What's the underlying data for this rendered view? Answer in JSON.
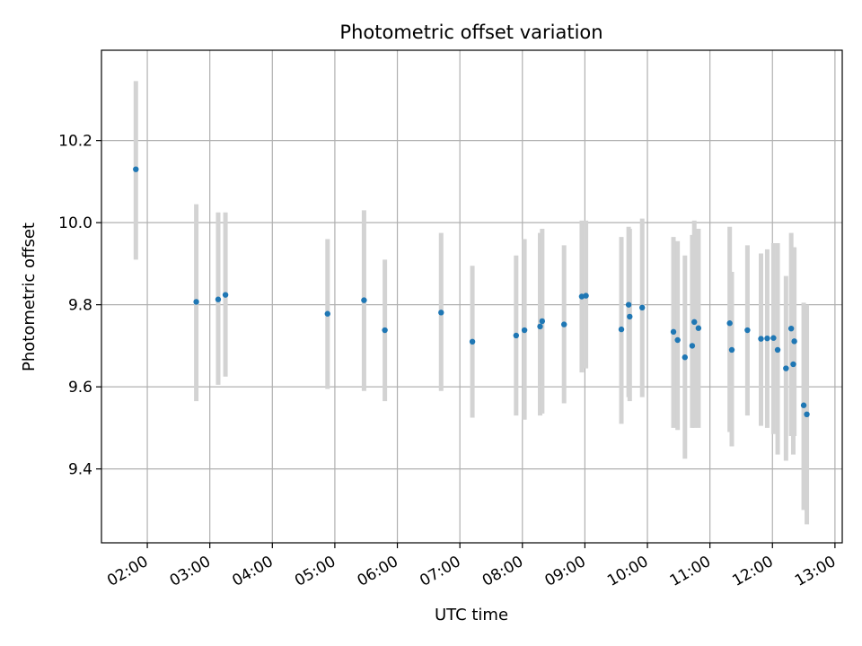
{
  "chart_data": {
    "type": "scatter",
    "title": "Photometric offset variation",
    "xlabel": "UTC time",
    "ylabel": "Photometric offset",
    "xlim": [
      "01:16",
      "13:07"
    ],
    "ylim": [
      9.22,
      10.42
    ],
    "grid": true,
    "colors": {
      "point": "#1f77b4",
      "errorbar": "#d3d3d3",
      "grid": "#b0b0b0"
    },
    "x_ticks": [
      "02:00",
      "03:00",
      "04:00",
      "05:00",
      "06:00",
      "07:00",
      "08:00",
      "09:00",
      "10:00",
      "11:00",
      "12:00",
      "13:00"
    ],
    "y_ticks": [
      "9.4",
      "9.6",
      "9.8",
      "10.0",
      "10.2"
    ],
    "series": [
      {
        "x": [
          "01:49",
          "02:47",
          "03:08",
          "03:15",
          "04:53",
          "05:28",
          "05:48",
          "06:42",
          "07:12",
          "07:54",
          "08:02",
          "08:17",
          "08:19",
          "08:40",
          "08:57",
          "09:01",
          "09:35",
          "09:42",
          "09:43",
          "09:55",
          "10:25",
          "10:29",
          "10:36",
          "10:43",
          "10:45",
          "10:49",
          "11:19",
          "11:21",
          "11:36",
          "11:49",
          "11:55",
          "12:01",
          "12:05",
          "12:13",
          "12:18",
          "12:20",
          "12:21",
          "12:30",
          "12:33"
        ],
        "y": [
          10.13,
          9.807,
          9.813,
          9.824,
          9.778,
          9.811,
          9.738,
          9.781,
          9.71,
          9.725,
          9.738,
          9.747,
          9.76,
          9.752,
          9.82,
          9.822,
          9.74,
          9.8,
          9.771,
          9.793,
          9.734,
          9.714,
          9.672,
          9.7,
          9.758,
          9.743,
          9.755,
          9.69,
          9.738,
          9.717,
          9.718,
          9.719,
          9.69,
          9.645,
          9.742,
          9.655,
          9.711,
          9.555,
          9.533
        ],
        "err_low": [
          9.91,
          9.565,
          9.605,
          9.625,
          9.595,
          9.59,
          9.565,
          9.59,
          9.525,
          9.53,
          9.52,
          9.53,
          9.535,
          9.56,
          9.635,
          9.645,
          9.51,
          9.575,
          9.565,
          9.575,
          9.5,
          9.495,
          9.425,
          9.5,
          9.5,
          9.5,
          9.49,
          9.455,
          9.53,
          9.505,
          9.5,
          9.485,
          9.435,
          9.42,
          9.48,
          9.435,
          9.48,
          9.3,
          9.265
        ],
        "err_high": [
          10.345,
          10.045,
          10.025,
          10.025,
          9.96,
          10.03,
          9.91,
          9.975,
          9.895,
          9.92,
          9.96,
          9.975,
          9.985,
          9.945,
          10.005,
          10.005,
          9.965,
          9.99,
          9.985,
          10.01,
          9.965,
          9.955,
          9.92,
          9.97,
          10.005,
          9.985,
          9.99,
          9.88,
          9.945,
          9.925,
          9.935,
          9.95,
          9.95,
          9.87,
          9.975,
          9.94,
          9.94,
          9.805,
          9.8
        ]
      }
    ]
  }
}
